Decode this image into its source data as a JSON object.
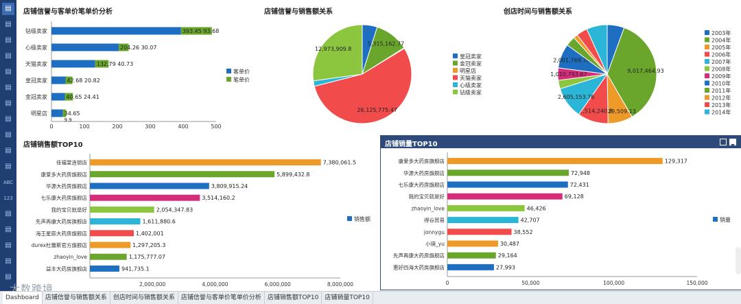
{
  "sidebar": {
    "items": [
      "bar-icon",
      "column-icon",
      "column-icon",
      "bar-icon",
      "hbar-icon",
      "pie-icon",
      "gauge-icon",
      "ring-icon",
      "bubble-icon",
      "scatter-icon",
      "table-icon",
      "ABC",
      "123",
      "crosstab-icon",
      "grid-icon",
      "detail-icon",
      "list-icon",
      "window-icon"
    ]
  },
  "panels": {
    "p1": {
      "title": "店铺信誉与客单价笔单价分析"
    },
    "p2": {
      "title": "店铺信誉与销售额关系"
    },
    "p3": {
      "title": "创店时间与销售额关系"
    },
    "p4": {
      "title": "店铺销售额TOP10"
    },
    "p5": {
      "title": "店铺销量TOP10"
    }
  },
  "tabs": [
    {
      "label": "Dashboard",
      "active": true
    },
    {
      "label": "店铺信誉与销售额关系",
      "active": false
    },
    {
      "label": "创店时间与销售额关系",
      "active": false
    },
    {
      "label": "店铺信誉与客单价笔单价分析",
      "active": false
    },
    {
      "label": "店铺销售额TOP10",
      "active": false
    },
    {
      "label": "店铺销量TOP10",
      "active": false
    }
  ],
  "watermark": "大数跨境",
  "chart_data": [
    {
      "type": "bar",
      "title": "店铺信誉与客单价笔单价分析",
      "categories": [
        "钻级卖家",
        "心级卖家",
        "天猫卖家",
        "皇冠卖家",
        "金冠卖家",
        "明星店"
      ],
      "series": [
        {
          "name": "客单价",
          "color": "#1e6fc1",
          "values": [
            393.45,
            204.26,
            132.79,
            42.68,
            40.65,
            34.65
          ]
        },
        {
          "name": "笔单价",
          "color": "#6aa62c",
          "values": [
            93.68,
            30.07,
            40.73,
            20.82,
            24.41,
            9.9
          ]
        }
      ],
      "stacked": true,
      "xlim": [
        0,
        500
      ],
      "xticks": [
        0,
        100,
        200,
        300,
        400,
        500
      ],
      "labels": [
        "393.45 93.68",
        "204.26 30.07",
        "132.79 40.73",
        "42.68 20.82",
        "40.65 24.41",
        "34.65"
      ],
      "extra_labels": [
        "",
        "",
        "",
        "",
        "",
        "9.9"
      ],
      "legend": "right"
    },
    {
      "type": "pie",
      "title": "店铺信誉与销售额关系",
      "slices": [
        {
          "name": "皇冠卖家",
          "value": 2350000,
          "color": "#1e6fc1",
          "label": ""
        },
        {
          "name": "金冠卖家",
          "value": 5315162.77,
          "color": "#6aa62c",
          "label": "5,315,162.77"
        },
        {
          "name": "明星店",
          "value": 120000,
          "color": "#ee9a28",
          "label": ""
        },
        {
          "name": "天猫卖家",
          "value": 26125775.47,
          "color": "#f24b4b",
          "label": "26,125,775.47"
        },
        {
          "name": "心级卖家",
          "value": 850000,
          "color": "#2bb5d6",
          "label": ""
        },
        {
          "name": "钻级卖家",
          "value": 12973909.8,
          "color": "#8cc63f",
          "label": "12,973,909.8"
        }
      ],
      "legend": "right"
    },
    {
      "type": "pie",
      "title": "创店时间与销售额关系",
      "slices": [
        {
          "name": "2003年",
          "value": 1400000,
          "color": "#1e6fc1",
          "label": ""
        },
        {
          "name": "2004年",
          "value": 9017464.93,
          "color": "#6aa62c",
          "label": "9,017,464.93"
        },
        {
          "name": "2005年",
          "value": 2029509.13,
          "color": "#ee9a28",
          "label": "2,029,509.13"
        },
        {
          "name": "2006年",
          "value": 2514240.8,
          "color": "#f24b4b",
          "label": "2,514,240.8"
        },
        {
          "name": "2007年",
          "value": 2605153.76,
          "color": "#2bb5d6",
          "label": "2,605,153.76"
        },
        {
          "name": "2008年",
          "value": 700000,
          "color": "#8cc63f",
          "label": ""
        },
        {
          "name": "2009年",
          "value": 1010793.67,
          "color": "#d62d7a",
          "label": "1,010,793.67"
        },
        {
          "name": "2010年",
          "value": 2001769.78,
          "color": "#1e6fc1",
          "label": "2,001,769.78"
        },
        {
          "name": "2011年",
          "value": 800000,
          "color": "#6aa62c",
          "label": ""
        },
        {
          "name": "2012年",
          "value": 350000,
          "color": "#ee9a28",
          "label": ""
        },
        {
          "name": "2013年",
          "value": 900000,
          "color": "#f24b4b",
          "label": ""
        },
        {
          "name": "2014年",
          "value": 1700000,
          "color": "#2bb5d6",
          "label": ""
        }
      ],
      "legend": "right"
    },
    {
      "type": "bar",
      "title": "店铺销售额TOP10",
      "categories": [
        "佳福堂连锁店",
        "康爱多大药房旗舰店",
        "华源大药房旗舰店",
        "七乐康大药房旗舰店",
        "我的宝贝就是好",
        "先声再康大药房旗舰店",
        "海王星辰大药房旗舰店",
        "durex杜蕾斯官方旗舰店",
        "zhaoyin_love",
        "益丰大药房旗舰店"
      ],
      "values": [
        7380061.5,
        5899432.8,
        3809915.24,
        3514160.2,
        2054347.83,
        1611880.6,
        1402001,
        1297205.3,
        1175777.07,
        941735.1
      ],
      "value_labels": [
        "7,380,061.5",
        "5,899,432.8",
        "3,809,915.24",
        "3,514,160.2",
        "2,054,347.83",
        "1,611,880.6",
        "1,402,001",
        "1,297,205.3",
        "1,175,777.07",
        "941,735.1"
      ],
      "colors": [
        "#ee9a28",
        "#6aa62c",
        "#1e6fc1",
        "#d62d7a",
        "#8cc63f",
        "#2bb5d6",
        "#f24b4b",
        "#ee9a28",
        "#6aa62c",
        "#1e6fc1"
      ],
      "series_name": "销售额",
      "xlim": [
        0,
        8000000
      ],
      "xticks": [
        2000000,
        4000000,
        6000000,
        8000000
      ],
      "xtick_labels": [
        "2,000,000",
        "4,000,000",
        "6,000,000",
        "8,000,000"
      ],
      "legend": "right"
    },
    {
      "type": "bar",
      "title": "店铺销量TOP10",
      "categories": [
        "康爱多大药房旗舰店",
        "华源大药房旗舰店",
        "七乐康大药房旗舰店",
        "我的宝贝就是好",
        "zhaoyin_love",
        "得谷贸易",
        "jonnygu",
        "小瑛_yu",
        "先声再康大药房旗舰店",
        "惠好四海大药房旗舰店"
      ],
      "values": [
        129317,
        72948,
        72431,
        69128,
        46426,
        42707,
        38552,
        30487,
        29164,
        27993
      ],
      "value_labels": [
        "129,317",
        "72,948",
        "72,431",
        "69,128",
        "46,426",
        "42,707",
        "38,552",
        "30,487",
        "29,164",
        "27,993"
      ],
      "colors": [
        "#ee9a28",
        "#6aa62c",
        "#1e6fc1",
        "#d62d7a",
        "#8cc63f",
        "#2bb5d6",
        "#f24b4b",
        "#ee9a28",
        "#6aa62c",
        "#1e6fc1"
      ],
      "series_name": "销量",
      "xlim": [
        0,
        150000
      ],
      "xticks": [
        0,
        50000,
        100000,
        150000
      ],
      "xtick_labels": [
        "0",
        "50,000",
        "100,000",
        "150,000"
      ],
      "legend": "right"
    }
  ]
}
